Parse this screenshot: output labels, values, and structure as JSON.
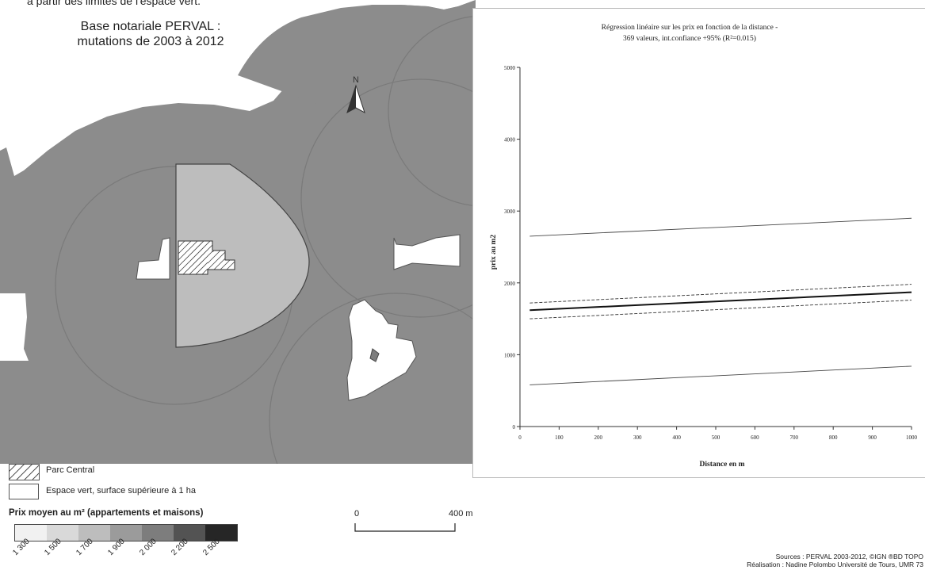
{
  "map": {
    "top_cut_text": "à partir des limites de l'espace vert.",
    "title_line1": "Base notariale PERVAL :",
    "title_line2": "mutations de 2003 à 2012",
    "north_label": "N",
    "colors": {
      "ring": "#8c8c8c",
      "central": "#bdbdbd",
      "green_space": "#ffffff",
      "outline": "#444444"
    }
  },
  "legend": {
    "park_label": "Parc Central",
    "green_label": "Espace vert, surface supérieure à 1 ha",
    "price_heading": "Prix moyen au m² (appartements et maisons)",
    "price_classes": [
      {
        "label": "1 300",
        "color": "#f1f1f1"
      },
      {
        "label": "1 500",
        "color": "#d9d9d9"
      },
      {
        "label": "1 700",
        "color": "#bdbdbd"
      },
      {
        "label": "1 900",
        "color": "#9b9b9b"
      },
      {
        "label": "2 000",
        "color": "#7d7d7d"
      },
      {
        "label": "2 200",
        "color": "#535353"
      },
      {
        "label": "2 500",
        "color": "#262626"
      }
    ]
  },
  "scalebar": {
    "start": "0",
    "end": "400 m"
  },
  "sources": {
    "line1": "Sources : PERVAL 2003-2012, ©IGN ®BD TOPO",
    "line2": "Réalisation : Nadine Polombo Université de Tours, UMR 73"
  },
  "chart_data": {
    "type": "line",
    "title_line1": "Régression linéaire sur les prix en fonction de la distance -",
    "title_line2": "369 valeurs, int.confiance +95% (R²=0.015)",
    "xlabel": "Distance en m",
    "ylabel": "prix au m2",
    "xlim": [
      0,
      1000
    ],
    "ylim": [
      0,
      5000
    ],
    "x_ticks": [
      0,
      100,
      200,
      300,
      400,
      500,
      600,
      700,
      800,
      900,
      1000
    ],
    "y_ticks": [
      0,
      1000,
      2000,
      3000,
      4000,
      5000
    ],
    "grid": false,
    "series": [
      {
        "style": "regression",
        "x": [
          25,
          1000
        ],
        "y": [
          1620,
          1870
        ]
      },
      {
        "style": "confidence",
        "x": [
          25,
          1000
        ],
        "y": [
          1720,
          1980
        ]
      },
      {
        "style": "confidence",
        "x": [
          25,
          1000
        ],
        "y": [
          1500,
          1760
        ]
      },
      {
        "style": "prediction",
        "x": [
          25,
          1000
        ],
        "y": [
          2650,
          2900
        ]
      },
      {
        "style": "prediction",
        "x": [
          25,
          1000
        ],
        "y": [
          580,
          840
        ]
      }
    ]
  }
}
